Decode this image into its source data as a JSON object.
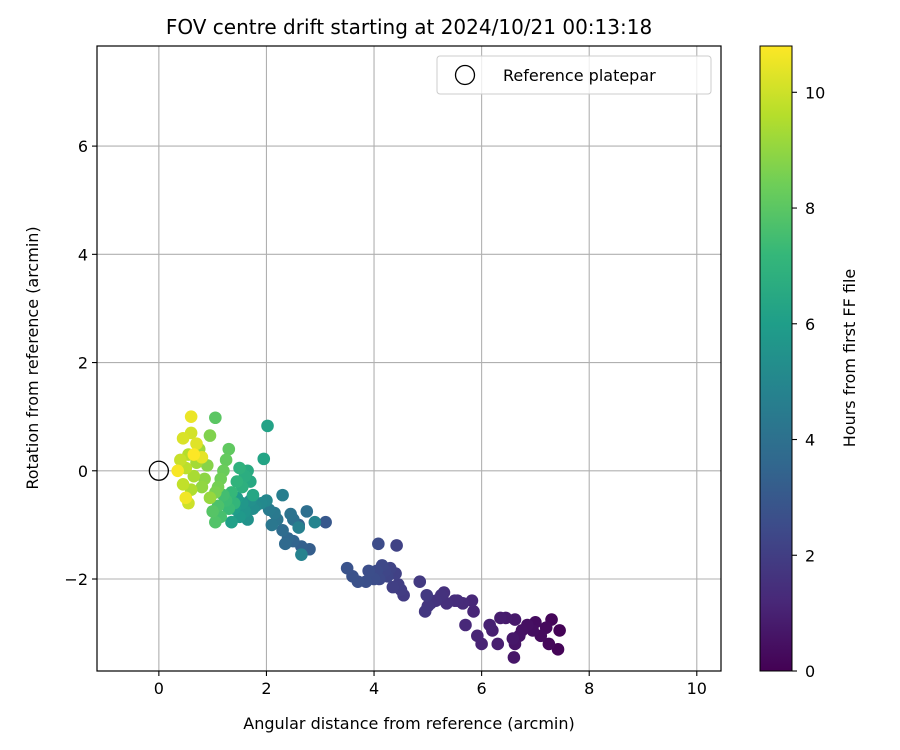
{
  "chart_data": {
    "type": "scatter",
    "title": "FOV centre drift starting at 2024/10/21 00:13:18",
    "xlabel": "Angular distance from reference (arcmin)",
    "ylabel": "Rotation from reference (arcmin)",
    "xlim": [
      -1.15,
      10.45
    ],
    "ylim": [
      -3.7,
      7.85
    ],
    "xticks": [
      0,
      2,
      4,
      6,
      8,
      10
    ],
    "xtick_labels": [
      "0",
      "2",
      "4",
      "6",
      "8",
      "10"
    ],
    "yticks": [
      -2,
      0,
      2,
      4,
      6
    ],
    "ytick_labels": [
      "−2",
      "0",
      "2",
      "4",
      "6"
    ],
    "grid": true,
    "legend": {
      "position": "top-right",
      "entries": [
        {
          "label": "Reference platepar",
          "marker": "open-circle"
        }
      ]
    },
    "reference_point": {
      "x": 0,
      "y": 0
    },
    "colorbar": {
      "label": "Hours from first FF file",
      "colormap": "viridis",
      "range": [
        0,
        10.8
      ],
      "ticks": [
        0,
        2,
        4,
        6,
        8,
        10
      ],
      "tick_labels": [
        "0",
        "2",
        "4",
        "6",
        "8",
        "10"
      ]
    },
    "colormap_stops": [
      "#440154",
      "#482878",
      "#3e4989",
      "#31688e",
      "#26828e",
      "#1f9e89",
      "#35b779",
      "#6ece58",
      "#b5de2b",
      "#fde725"
    ],
    "points": [
      [
        7.45,
        -2.95,
        0.05
      ],
      [
        7.42,
        -3.3,
        0.1
      ],
      [
        7.3,
        -2.75,
        0.15
      ],
      [
        7.25,
        -3.2,
        0.2
      ],
      [
        7.2,
        -2.9,
        0.25
      ],
      [
        7.1,
        -3.05,
        0.3
      ],
      [
        7.0,
        -2.8,
        0.35
      ],
      [
        6.95,
        -2.95,
        0.4
      ],
      [
        6.85,
        -2.85,
        0.45
      ],
      [
        6.75,
        -2.95,
        0.5
      ],
      [
        6.7,
        -3.05,
        0.55
      ],
      [
        6.62,
        -3.2,
        0.6
      ],
      [
        6.6,
        -3.45,
        0.65
      ],
      [
        6.58,
        -3.1,
        0.7
      ],
      [
        6.62,
        -2.75,
        0.75
      ],
      [
        6.45,
        -2.72,
        0.8
      ],
      [
        6.35,
        -2.72,
        0.85
      ],
      [
        6.3,
        -3.2,
        0.9
      ],
      [
        6.2,
        -2.95,
        0.95
      ],
      [
        6.15,
        -2.85,
        1.0
      ],
      [
        6.0,
        -3.2,
        1.05
      ],
      [
        5.92,
        -3.05,
        1.1
      ],
      [
        5.85,
        -2.6,
        1.15
      ],
      [
        5.82,
        -2.4,
        1.2
      ],
      [
        5.7,
        -2.85,
        1.25
      ],
      [
        5.65,
        -2.45,
        1.3
      ],
      [
        5.55,
        -2.4,
        1.35
      ],
      [
        5.5,
        -2.4,
        1.4
      ],
      [
        5.35,
        -2.45,
        1.45
      ],
      [
        5.3,
        -2.25,
        1.5
      ],
      [
        5.25,
        -2.3,
        1.55
      ],
      [
        5.15,
        -2.4,
        1.6
      ],
      [
        5.05,
        -2.45,
        1.65
      ],
      [
        5.0,
        -2.5,
        1.7
      ],
      [
        4.95,
        -2.6,
        1.75
      ],
      [
        4.98,
        -2.3,
        1.8
      ],
      [
        4.85,
        -2.05,
        1.85
      ],
      [
        4.55,
        -2.3,
        1.9
      ],
      [
        4.5,
        -2.2,
        1.95
      ],
      [
        4.45,
        -2.1,
        2.0
      ],
      [
        4.35,
        -2.15,
        2.05
      ],
      [
        4.4,
        -1.9,
        2.1
      ],
      [
        4.42,
        -1.38,
        2.15
      ],
      [
        4.3,
        -1.8,
        2.2
      ],
      [
        4.25,
        -1.95,
        2.25
      ],
      [
        4.2,
        -1.85,
        2.3
      ],
      [
        4.15,
        -1.75,
        2.35
      ],
      [
        4.1,
        -2.0,
        2.4
      ],
      [
        4.05,
        -1.85,
        2.45
      ],
      [
        4.08,
        -1.35,
        2.5
      ],
      [
        4.0,
        -2.0,
        2.55
      ],
      [
        3.9,
        -1.85,
        2.6
      ],
      [
        3.85,
        -2.05,
        2.65
      ],
      [
        3.7,
        -2.05,
        2.7
      ],
      [
        3.6,
        -1.95,
        2.75
      ],
      [
        3.5,
        -1.8,
        2.8
      ],
      [
        3.1,
        -0.95,
        3.0
      ],
      [
        2.8,
        -1.45,
        3.2
      ],
      [
        2.65,
        -1.4,
        3.3
      ],
      [
        2.6,
        -1.0,
        3.4
      ],
      [
        2.5,
        -1.3,
        3.5
      ],
      [
        2.4,
        -1.25,
        3.6
      ],
      [
        2.35,
        -1.35,
        3.7
      ],
      [
        2.3,
        -1.1,
        3.8
      ],
      [
        2.75,
        -0.75,
        3.9
      ],
      [
        2.5,
        -0.9,
        4.0
      ],
      [
        2.45,
        -0.8,
        4.1
      ],
      [
        2.2,
        -0.9,
        4.2
      ],
      [
        2.1,
        -1.0,
        4.3
      ],
      [
        2.15,
        -0.78,
        4.4
      ],
      [
        2.05,
        -0.72,
        4.5
      ],
      [
        2.3,
        -0.45,
        4.6
      ],
      [
        2.6,
        -1.05,
        4.7
      ],
      [
        2.65,
        -1.55,
        4.8
      ],
      [
        2.9,
        -0.95,
        4.9
      ],
      [
        2.0,
        -0.55,
        5.0
      ],
      [
        1.9,
        -0.6,
        5.1
      ],
      [
        1.8,
        -0.65,
        5.2
      ],
      [
        1.75,
        -0.7,
        5.3
      ],
      [
        1.7,
        -0.55,
        5.4
      ],
      [
        1.65,
        -0.9,
        5.5
      ],
      [
        1.6,
        -0.75,
        5.6
      ],
      [
        1.55,
        -0.6,
        5.7
      ],
      [
        1.5,
        -0.85,
        5.8
      ],
      [
        1.45,
        -0.5,
        5.9
      ],
      [
        1.4,
        -0.7,
        6.0
      ],
      [
        1.35,
        -0.95,
        6.1
      ],
      [
        2.02,
        0.83,
        6.2
      ],
      [
        1.95,
        0.22,
        6.3
      ],
      [
        1.75,
        -0.45,
        6.4
      ],
      [
        1.7,
        -0.2,
        6.5
      ],
      [
        1.65,
        0.0,
        6.6
      ],
      [
        1.6,
        -0.1,
        6.7
      ],
      [
        1.55,
        -0.3,
        6.8
      ],
      [
        1.5,
        0.05,
        6.9
      ],
      [
        1.45,
        -0.2,
        7.0
      ],
      [
        1.4,
        -0.6,
        7.1
      ],
      [
        1.35,
        -0.4,
        7.2
      ],
      [
        1.3,
        -0.7,
        7.3
      ],
      [
        1.25,
        -0.55,
        7.4
      ],
      [
        1.2,
        -0.45,
        7.5
      ],
      [
        1.15,
        -0.85,
        7.6
      ],
      [
        1.1,
        -0.65,
        7.7
      ],
      [
        1.05,
        -0.95,
        7.8
      ],
      [
        1.0,
        -0.75,
        7.9
      ],
      [
        1.05,
        0.98,
        8.0
      ],
      [
        1.3,
        0.4,
        8.1
      ],
      [
        1.25,
        0.2,
        8.2
      ],
      [
        1.2,
        0.0,
        8.3
      ],
      [
        1.15,
        -0.15,
        8.4
      ],
      [
        1.1,
        -0.3,
        8.5
      ],
      [
        1.05,
        -0.4,
        8.6
      ],
      [
        0.95,
        0.65,
        8.7
      ],
      [
        0.9,
        0.1,
        8.8
      ],
      [
        0.85,
        -0.15,
        8.9
      ],
      [
        0.8,
        -0.3,
        9.0
      ],
      [
        0.95,
        -0.5,
        9.1
      ],
      [
        0.75,
        0.4,
        9.2
      ],
      [
        0.7,
        0.15,
        9.3
      ],
      [
        0.65,
        -0.1,
        9.4
      ],
      [
        0.6,
        -0.35,
        9.5
      ],
      [
        0.55,
        0.3,
        9.6
      ],
      [
        0.5,
        0.05,
        9.7
      ],
      [
        0.45,
        -0.25,
        9.8
      ],
      [
        0.4,
        0.2,
        9.9
      ],
      [
        0.55,
        -0.6,
        10.0
      ],
      [
        0.6,
        0.7,
        10.1
      ],
      [
        0.45,
        0.6,
        10.2
      ],
      [
        0.7,
        0.5,
        10.3
      ],
      [
        0.8,
        0.25,
        10.4
      ],
      [
        0.6,
        1.0,
        10.5
      ],
      [
        0.5,
        -0.5,
        10.6
      ],
      [
        0.35,
        0.0,
        10.7
      ],
      [
        0.65,
        0.3,
        10.8
      ]
    ]
  }
}
